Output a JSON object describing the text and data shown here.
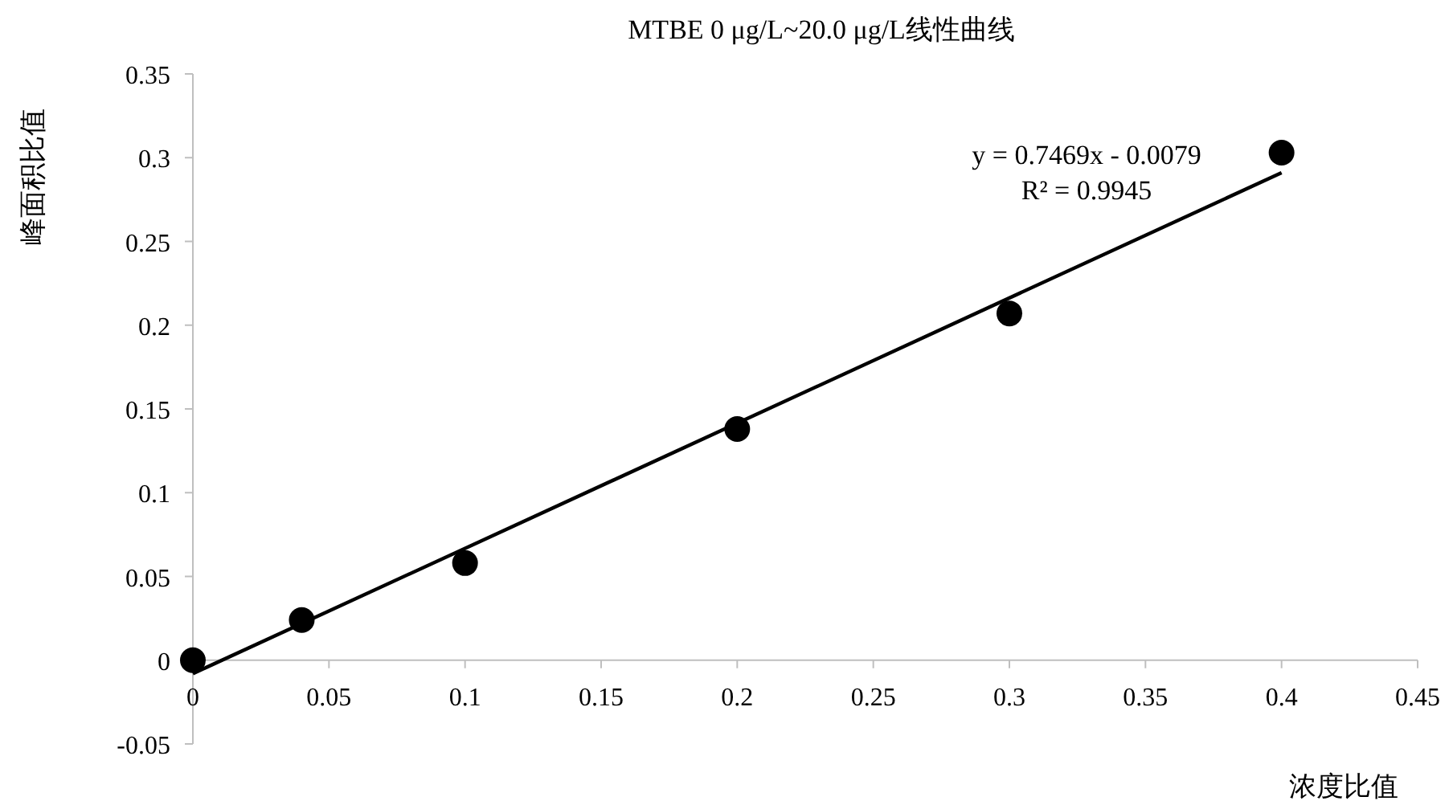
{
  "chart_data": {
    "type": "scatter",
    "title": "MTBE 0 μg/L~20.0 μg/L线性曲线",
    "xlabel": "浓度比值",
    "ylabel": "峰面积比值",
    "annotations": [
      "y = 0.7469x - 0.0079",
      "R² = 0.9945"
    ],
    "xlim": [
      0,
      0.45
    ],
    "ylim": [
      -0.05,
      0.35
    ],
    "xticks": [
      0,
      0.05,
      0.1,
      0.15,
      0.2,
      0.25,
      0.3,
      0.35,
      0.4,
      0.45
    ],
    "yticks": [
      -0.05,
      0,
      0.05,
      0.1,
      0.15,
      0.2,
      0.25,
      0.3,
      0.35
    ],
    "series": [
      {
        "color": "#000000",
        "marker": "circle",
        "x": [
          0,
          0.04,
          0.1,
          0.2,
          0.3,
          0.4
        ],
        "values": [
          0,
          0.024,
          0.058,
          0.138,
          0.207,
          0.303
        ]
      },
      {
        "type": "line",
        "color": "#000000",
        "marker": "none",
        "x": [
          0,
          0.4
        ],
        "values": [
          -0.008,
          0.291
        ]
      }
    ]
  }
}
